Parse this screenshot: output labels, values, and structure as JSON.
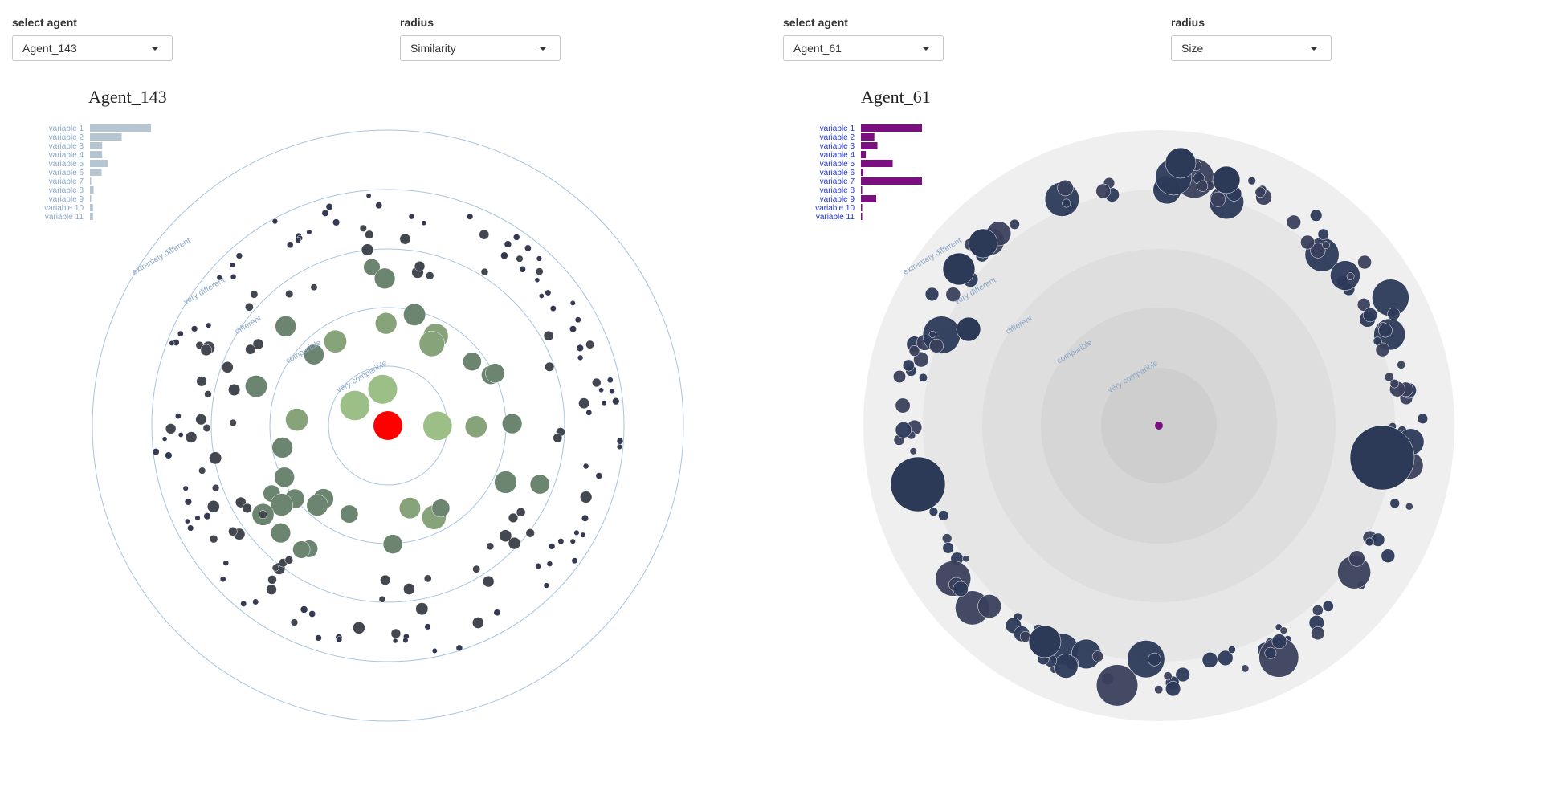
{
  "panels": [
    {
      "select_agent_label": "select agent",
      "agent_value": "Agent_143",
      "radius_label": "radius",
      "radius_value": "Similarity",
      "title": "Agent_143"
    },
    {
      "select_agent_label": "select agent",
      "agent_value": "Agent_61",
      "radius_label": "radius",
      "radius_value": "Size",
      "title": "Agent_61"
    }
  ],
  "chart_data": [
    {
      "type": "bar",
      "orientation": "horizontal",
      "title": "Agent_143",
      "categories": [
        "variable 1",
        "variable 2",
        "variable 3",
        "variable 4",
        "variable 5",
        "variable 6",
        "variable 7",
        "variable 8",
        "variable 9",
        "variable 10",
        "variable 11"
      ],
      "values": [
        1.0,
        0.52,
        0.2,
        0.2,
        0.29,
        0.19,
        0.02,
        0.06,
        0.0,
        0.05,
        0.05
      ],
      "bar_color": "#b6c5d2",
      "label_color": "#8aa7c8",
      "ring_labels": [
        "very comparible",
        "comparible",
        "different",
        "very different",
        "extremely different"
      ],
      "center_color": "#ff0000",
      "node_palette": [
        "#9bbf87",
        "#6b8570",
        "#43474f",
        "#353a52"
      ]
    },
    {
      "type": "bar",
      "orientation": "horizontal",
      "title": "Agent_61",
      "categories": [
        "variable 1",
        "variable 2",
        "variable 3",
        "variable 4",
        "variable 5",
        "variable 6",
        "variable 7",
        "variable 8",
        "variable 9",
        "variable 10",
        "variable 11"
      ],
      "values": [
        1.0,
        0.22,
        0.27,
        0.08,
        0.52,
        0.04,
        1.0,
        0.0,
        0.25,
        0.02,
        0.02
      ],
      "bar_color": "#7b0f7f",
      "label_color": "#1f33d8",
      "ring_labels": [
        "very comparible",
        "comparible",
        "different",
        "very different",
        "extremely different"
      ],
      "center_color": "#7b0f7f",
      "node_palette": [
        "#2c3a58",
        "#3a3f5c"
      ]
    }
  ]
}
